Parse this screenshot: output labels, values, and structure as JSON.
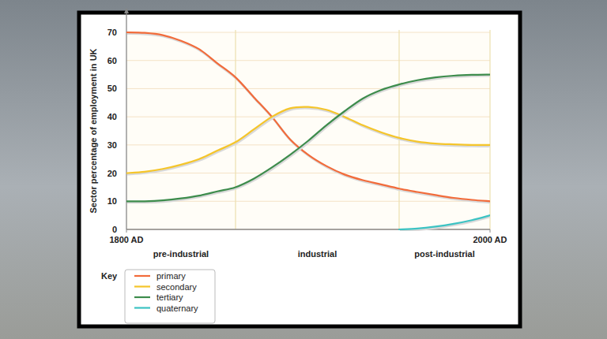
{
  "chart_data": {
    "type": "line",
    "y_label": "Sector percentage of employment in UK",
    "x": [
      1800,
      1810,
      1820,
      1830,
      1840,
      1850,
      1860,
      1870,
      1880,
      1890,
      1900,
      1910,
      1920,
      1930,
      1940,
      1950,
      1960,
      1970,
      1980,
      1990,
      2000
    ],
    "series": [
      {
        "name": "primary",
        "color": "#f26b3a",
        "values": [
          70,
          69.8,
          69,
          67,
          64,
          59,
          54,
          47,
          40,
          32,
          26.5,
          22.5,
          19.5,
          17.5,
          16,
          14.5,
          13.3,
          12.2,
          11.2,
          10.5,
          10
        ]
      },
      {
        "name": "secondary",
        "color": "#f5c52a",
        "values": [
          20,
          20.5,
          21.5,
          23,
          25,
          28,
          31,
          35.5,
          40,
          43,
          43.5,
          42.5,
          40,
          37,
          34.5,
          32.5,
          31.2,
          30.5,
          30.2,
          30,
          30
        ]
      },
      {
        "name": "tertiary",
        "color": "#3d8c4c",
        "values": [
          10,
          10,
          10.3,
          11,
          12,
          13.5,
          15,
          18,
          22,
          26.5,
          31.5,
          37,
          42,
          46.5,
          49.5,
          51.5,
          53,
          54,
          54.6,
          54.9,
          55
        ]
      },
      {
        "name": "quaternary",
        "color": "#3cc3c3",
        "values": [
          null,
          null,
          null,
          null,
          null,
          null,
          null,
          null,
          null,
          null,
          null,
          null,
          null,
          null,
          null,
          0,
          0.3,
          1,
          2,
          3.3,
          5
        ]
      }
    ],
    "xlim": [
      1800,
      2000
    ],
    "xticks": [
      {
        "value": 1800,
        "label": "1800 AD"
      },
      {
        "value": 2000,
        "label": "2000 AD"
      }
    ],
    "ylim": [
      0,
      70
    ],
    "yticks": [
      0,
      10,
      20,
      30,
      40,
      50,
      60,
      70
    ],
    "zones": [
      {
        "label": "pre-industrial",
        "from": 1800,
        "to": 1860
      },
      {
        "label": "industrial",
        "from": 1860,
        "to": 1950
      },
      {
        "label": "post-industrial",
        "from": 1950,
        "to": 2000
      }
    ],
    "legend_title": "Key",
    "legend": "bottom-left",
    "grid": true
  }
}
